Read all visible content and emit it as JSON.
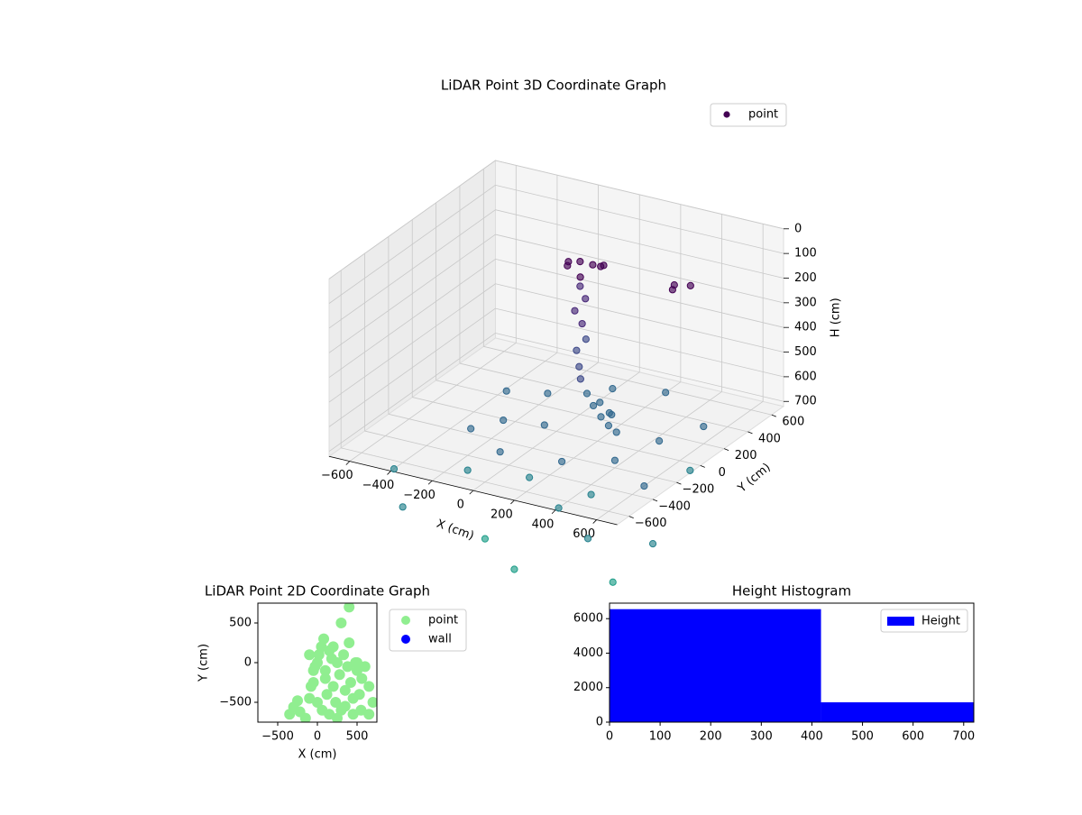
{
  "chart_data": [
    {
      "type": "scatter3d",
      "title": "LiDAR Point 3D Coordinate Graph",
      "x_label": "X (cm)",
      "y_label": "Y (cm)",
      "z_label": "H (cm)",
      "series": [
        {
          "name": "point",
          "colormap": "viridis",
          "x": [
            0,
            50,
            -50,
            100,
            -80,
            30,
            80,
            0,
            20,
            -20,
            10,
            40,
            0,
            30,
            60,
            120,
            180,
            240,
            300,
            350,
            280,
            200,
            400,
            450,
            380,
            -300,
            -100,
            100,
            300,
            500,
            200,
            -200,
            400,
            600,
            500,
            600,
            300,
            -400,
            -500,
            0,
            200,
            650,
            700,
            650,
            -100,
            100,
            -300,
            0,
            200,
            400,
            -200
          ],
          "y": [
            200,
            220,
            180,
            200,
            240,
            150,
            260,
            200,
            210,
            190,
            200,
            180,
            170,
            140,
            100,
            50,
            0,
            -40,
            -80,
            -100,
            -20,
            20,
            300,
            350,
            320,
            -200,
            -300,
            -400,
            -500,
            -600,
            -300,
            -100,
            -200,
            -300,
            0,
            200,
            400,
            -600,
            -500,
            -600,
            -700,
            -650,
            -400,
            0,
            100,
            300,
            100,
            -100,
            100,
            -400,
            -400
          ],
          "z": [
            100,
            110,
            120,
            100,
            130,
            140,
            120,
            200,
            250,
            300,
            350,
            400,
            450,
            500,
            530,
            560,
            580,
            600,
            610,
            620,
            590,
            570,
            150,
            160,
            180,
            700,
            720,
            750,
            800,
            850,
            700,
            680,
            690,
            720,
            660,
            650,
            640,
            900,
            800,
            950,
            1000,
            980,
            900,
            750,
            620,
            630,
            650,
            660,
            640,
            760,
            780
          ]
        }
      ],
      "xlim": [
        -700,
        700
      ],
      "ylim": [
        -700,
        700
      ],
      "zlim": [
        720,
        0
      ],
      "xticks": [
        {
          "value": -600,
          "label": "−600"
        },
        {
          "value": -400,
          "label": "−400"
        },
        {
          "value": -200,
          "label": "−200"
        },
        0,
        200,
        400,
        600
      ],
      "yticks": [
        {
          "value": -600,
          "label": "−600"
        },
        {
          "value": -400,
          "label": "−400"
        },
        {
          "value": -200,
          "label": "−200"
        },
        0,
        200,
        400,
        600
      ],
      "zticks": [
        0,
        100,
        200,
        300,
        400,
        500,
        600,
        700
      ],
      "grid": true,
      "legend": "upper right"
    },
    {
      "type": "scatter",
      "title": "LiDAR Point 2D Coordinate Graph",
      "x_label": "X (cm)",
      "y_label": "Y (cm)",
      "series": [
        {
          "name": "point",
          "color": "#90ee90",
          "x": [
            -350,
            -300,
            -250,
            -220,
            -150,
            -100,
            -80,
            -50,
            -30,
            0,
            20,
            50,
            80,
            100,
            120,
            150,
            180,
            200,
            230,
            250,
            280,
            300,
            330,
            350,
            380,
            400,
            420,
            450,
            480,
            500,
            530,
            560,
            600,
            650,
            700,
            -50,
            0,
            60,
            150,
            250,
            350,
            450,
            550,
            650,
            300,
            400,
            100,
            -100,
            200,
            500
          ],
          "y": [
            -650,
            -560,
            -480,
            -620,
            -700,
            -450,
            -300,
            -100,
            -50,
            0,
            100,
            200,
            300,
            -200,
            -400,
            150,
            50,
            -300,
            -500,
            0,
            -150,
            -600,
            100,
            -350,
            -50,
            250,
            -250,
            -450,
            0,
            -100,
            -400,
            -200,
            -50,
            -300,
            -500,
            -250,
            -500,
            -600,
            -650,
            -700,
            -550,
            -650,
            -600,
            -650,
            500,
            700,
            -100,
            100,
            200,
            0
          ],
          "value_labels": null
        },
        {
          "name": "wall",
          "color": "#0000ff",
          "x": [],
          "y": []
        }
      ],
      "xlim": [
        -750,
        750
      ],
      "ylim": [
        -750,
        750
      ],
      "xticks": [
        {
          "value": -500,
          "label": "−500"
        },
        0,
        500
      ],
      "yticks": [
        {
          "value": -500,
          "label": "−500"
        },
        0,
        500
      ],
      "legend": "outside right"
    },
    {
      "type": "histogram",
      "title": "Height Histogram",
      "name": "Height",
      "color": "#0000ff",
      "bins": [
        0,
        418,
        836
      ],
      "counts": [
        6550,
        1150
      ],
      "xlim": [
        0,
        720
      ],
      "ylim": [
        0,
        6900
      ],
      "xticks": [
        0,
        100,
        200,
        300,
        400,
        500,
        600,
        700
      ],
      "yticks": [
        0,
        2000,
        4000,
        6000
      ],
      "legend": "upper right"
    }
  ]
}
